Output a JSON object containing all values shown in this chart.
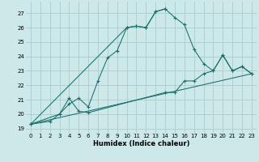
{
  "xlabel": "Humidex (Indice chaleur)",
  "bg_color": "#cce8e8",
  "grid_color": "#aacccc",
  "line_color": "#1a6e6e",
  "xlim": [
    -0.5,
    23.5
  ],
  "ylim": [
    18.7,
    27.8
  ],
  "yticks": [
    19,
    20,
    21,
    22,
    23,
    24,
    25,
    26,
    27
  ],
  "xticks": [
    0,
    1,
    2,
    3,
    4,
    5,
    6,
    7,
    8,
    9,
    10,
    11,
    12,
    13,
    14,
    15,
    16,
    17,
    18,
    19,
    20,
    21,
    22,
    23
  ],
  "curve1_x": [
    0,
    10,
    11,
    12,
    13,
    14,
    15,
    16,
    17,
    18,
    19,
    20,
    21,
    22,
    23
  ],
  "curve1_y": [
    19.3,
    26.0,
    26.1,
    26.0,
    27.1,
    27.3,
    26.7,
    26.2,
    24.5,
    23.5,
    23.0,
    24.1,
    23.0,
    23.3,
    22.8
  ],
  "curve2_x": [
    0,
    3,
    4,
    5,
    6,
    7,
    8,
    9,
    10,
    11,
    12,
    13,
    14
  ],
  "curve2_y": [
    19.3,
    20.0,
    20.7,
    21.1,
    20.5,
    22.3,
    23.9,
    24.4,
    26.0,
    26.1,
    26.0,
    27.1,
    27.3
  ],
  "curve3_x": [
    0,
    2,
    3,
    4,
    5,
    6,
    14,
    15,
    16,
    17,
    18,
    19,
    20,
    21,
    22,
    23
  ],
  "curve3_y": [
    19.3,
    19.5,
    20.0,
    21.1,
    20.2,
    20.1,
    21.5,
    21.5,
    22.3,
    22.3,
    22.8,
    23.0,
    24.1,
    23.0,
    23.3,
    22.8
  ],
  "line_x": [
    0,
    23
  ],
  "line_y": [
    19.3,
    22.8
  ]
}
